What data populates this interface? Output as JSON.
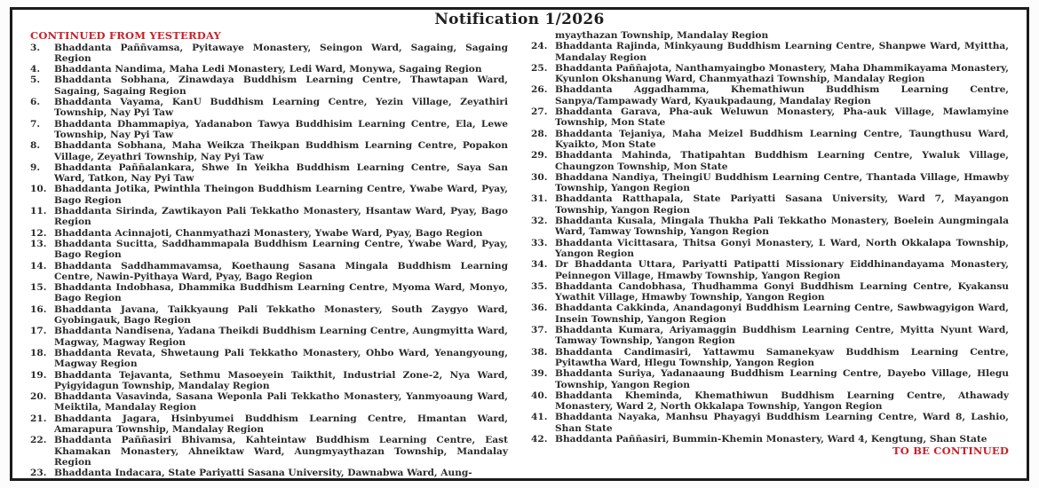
{
  "title": "Notification 1/2026",
  "colors": {
    "accent_red": "#c9202a",
    "text": "#2a2a2a",
    "border": "#1b1b1b"
  },
  "left_column": {
    "heading": "CONTINUED FROM YESTERDAY",
    "items": [
      {
        "num": "3.",
        "text": "Bhaddanta Paññvamsa, Pyitawaye Monastery, Seingon Ward, Sagaing, Sagaing Region"
      },
      {
        "num": "4.",
        "text": "Bhaddanta Nandima, Maha Ledi Monastery, Ledi Ward, Monywa, Sagaing Region"
      },
      {
        "num": "5.",
        "text": "Bhaddanta Sobhana, Zinawdaya Buddhism Learning Centre, Thawtapan Ward, Sagaing, Sagaing Region"
      },
      {
        "num": "6.",
        "text": "Bhaddanta Vayama, KanU Buddhism Learning Centre, Yezin Village, Zeyathiri Township, Nay Pyi Taw"
      },
      {
        "num": "7.",
        "text": "Bhaddanta Dhammapiya, Yadanabon Tawya Buddhisim Learning Centre, Ela, Lewe Township, Nay Pyi Taw"
      },
      {
        "num": "8.",
        "text": "Bhaddanta Sobhana, Maha Weikza Theikpan Buddhism Learning Centre, Popakon Village, Zeyathri Township, Nay Pyi Taw"
      },
      {
        "num": "9.",
        "text": "Bhaddanta Paññalankara, Shwe In Yeikha Buddhism Learning Centre, Saya San Ward, Tatkon, Nay Pyi Taw"
      },
      {
        "num": "10.",
        "text": "Bhaddanta Jotika, Pwinthla Theingon Buddhism Learning Centre, Ywabe Ward, Pyay, Bago Region"
      },
      {
        "num": "11.",
        "text": "Bhaddanta Sirinda, Zawtikayon Pali Tekkatho Monastery, Hsantaw Ward, Pyay, Bago Region"
      },
      {
        "num": "12.",
        "text": "Bhaddanta Acinnajoti, Chanmyathazi Monastery, Ywabe Ward, Pyay, Bago Region"
      },
      {
        "num": "13.",
        "text": "Bhaddanta Sucitta, Saddhammapala Buddhism Learning Centre, Ywabe Ward, Pyay, Bago Region"
      },
      {
        "num": "14.",
        "text": "Bhaddanta Saddhammavamsa, Koethaung Sasana Mingala Buddhism Learning Centre, Nawin-Pyithaya Ward, Pyay, Bago Region"
      },
      {
        "num": "15.",
        "text": "Bhaddanta Indobhasa, Dhammika Buddhism Learning Centre, Myoma Ward, Monyo, Bago Region"
      },
      {
        "num": "16.",
        "text": "Bhaddanta Javana, Taikkyaung Pali Tekkatho Monastery, South Zaygyo Ward, Gyobingauk, Bago Region"
      },
      {
        "num": "17.",
        "text": "Bhaddanta Nandisena, Yadana Theikdi Buddhism Learning Centre, Aungmyitta Ward, Magway, Magway Region"
      },
      {
        "num": "18.",
        "text": "Bhaddanta Revata, Shwetaung Pali Tekkatho Monastery, Ohbo Ward, Yenangyoung, Magway Region"
      },
      {
        "num": "19.",
        "text": "Bhaddanta Tejavanta, Sethmu Masoeyein Taikthit, Industrial Zone-2, Nya Ward, Pyigyidagun Township, Mandalay Region"
      },
      {
        "num": "20.",
        "text": "Bhaddanta Vasavinda, Sasana Weponla Pali Tekkatho Monastery, Yanmyoaung Ward, Meiktila, Mandalay Region"
      },
      {
        "num": "21.",
        "text": "Bhaddanta Jagara, Hsinbyumei Buddhism Learning Centre, Hmantan Ward, Amarapura Township, Mandalay Region"
      },
      {
        "num": "22.",
        "text": "Bhaddanta Paññasiri Bhivamsa, Kahteintaw Buddhism Learning Centre, East Khamakan Monastery, Ahneiktaw Ward, Aungmyaythazan Township, Mandalay Region"
      },
      {
        "num": "23.",
        "text": "Bhaddanta Indacara, State Pariyatti Sasana University, Dawnabwa Ward, Aung-"
      }
    ]
  },
  "right_column": {
    "continuation": "myaythazan Township, Mandalay Region",
    "items": [
      {
        "num": "24.",
        "text": "Bhaddanta Rajinda, Minkyaung Buddhism Learning Centre, Shanpwe Ward, Myittha, Mandalay Region"
      },
      {
        "num": "25.",
        "text": "Bhaddanta Paññajota, Nanthamyaingbo Monastery, Maha Dhammikayama Monastery, Kyunlon Okshanung Ward, Chanmyathazi Township, Mandalay Region"
      },
      {
        "num": "26.",
        "text": "Bhaddanta Aggadhamma, Khemathiwun Buddhism Learning Centre, Sanpya/Tampawady Ward, Kyaukpadaung, Mandalay Region"
      },
      {
        "num": "27.",
        "text": "Bhaddanta Garava, Pha-auk Weluwun Monastery, Pha-auk Village, Mawlamyine Township, Mon State"
      },
      {
        "num": "28.",
        "text": "Bhaddanta Tejaniya, Maha Meizel Buddhism Learning Centre, Taungthusu Ward, Kyaikto, Mon State"
      },
      {
        "num": "29.",
        "text": "Bhaddanta Mahinda, Thatipahtan Buddhism Learning Centre, Ywaluk Village, Chaungzon Township, Mon State"
      },
      {
        "num": "30.",
        "text": "Bhaddana Nandiya, TheingiU Buddhism Learning Centre, Thantada Village, Hmawby Township, Yangon Region"
      },
      {
        "num": "31.",
        "text": "Bhaddanta Ratthapala, State Pariyatti Sasana University, Ward 7, Mayangon Township, Yangon Region"
      },
      {
        "num": "32.",
        "text": "Bhaddanta Kusala, Mingala Thukha Pali Tekkatho Monastery, Boelein Aungmingala Ward, Tamway Township, Yangon Region"
      },
      {
        "num": "33.",
        "text": "Bhaddanta Vicittasara, Thitsa Gonyi Monastery, L Ward, North Okkalapa Township, Yangon Region"
      },
      {
        "num": "34.",
        "text": "Dr Bhaddanta Uttara, Pariyatti Patipatti Missionary Eiddhinandayama Monastery, Peinnegon Village, Hmawby Township, Yangon Region"
      },
      {
        "num": "35.",
        "text": "Bhaddanta Candobhasa, Thudhamma Gonyi Buddhism Learning Centre, Kyakansu Ywathit Village, Hmawby Township, Yangon Region"
      },
      {
        "num": "36.",
        "text": "Bhaddanta Cakkinda, Anandagonyi Buddhism Learning Centre, Sawbwagyigon Ward, Insein Township, Yangon Region"
      },
      {
        "num": "37.",
        "text": "Bhaddanta Kumara, Ariyamaggin Buddhism Learning Centre, Myitta Nyunt Ward, Tamway Township, Yangon Region"
      },
      {
        "num": "38.",
        "text": "Bhaddanta Candimasiri, Yattawmu Samanekyaw Buddhism Learning Centre, Pyitawtha Ward, Hlegu Township, Yangon Region"
      },
      {
        "num": "39.",
        "text": "Bhaddanta Suriya, Yadanaaung Buddhism Learning Centre, Dayebo Village, Hlegu Township, Yangon Region"
      },
      {
        "num": "40.",
        "text": "Bhaddanta Kheminda, Khemathiwun Buddhism Learning Centre, Athawady Monastery, Ward 2, North Okkalapa Township, Yangon Region"
      },
      {
        "num": "41.",
        "text": "Bhaddanta Nayaka, Manhsu Phayagyi Buddhism Learning Centre, Ward 8, Lashio, Shan State"
      },
      {
        "num": "42.",
        "text": "Bhaddanta Paññasiri, Bummin-Khemin Monastery, Ward 4, Kengtung, Shan State"
      }
    ],
    "footer": "TO BE CONTINUED"
  }
}
